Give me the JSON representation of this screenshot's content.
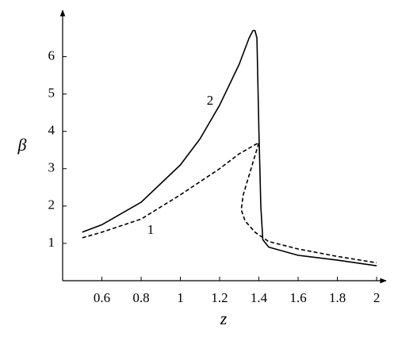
{
  "chart_data": {
    "type": "line",
    "xlabel": "z",
    "ylabel": "β",
    "xlim": [
      0.4,
      2.04
    ],
    "ylim": [
      0,
      7.2
    ],
    "xticks": [
      0.6,
      0.8,
      1,
      1.2,
      1.4,
      1.6,
      1.8,
      2
    ],
    "yticks": [
      1,
      2,
      3,
      4,
      5,
      6
    ],
    "series": [
      {
        "name": "1",
        "color": "#000000",
        "dashed": true,
        "x": [
          0.5,
          0.6,
          0.8,
          1.0,
          1.2,
          1.3,
          1.4,
          1.36,
          1.32,
          1.31,
          1.33,
          1.38,
          1.45,
          1.6,
          1.8,
          2.0
        ],
        "values": [
          1.15,
          1.3,
          1.65,
          2.3,
          3.0,
          3.4,
          3.7,
          3.0,
          2.3,
          1.9,
          1.6,
          1.3,
          1.05,
          0.85,
          0.65,
          0.48
        ]
      },
      {
        "name": "2",
        "color": "#000000",
        "dashed": false,
        "x": [
          0.5,
          0.6,
          0.8,
          1.0,
          1.1,
          1.2,
          1.3,
          1.35,
          1.37,
          1.38,
          1.39,
          1.4,
          1.41,
          1.42,
          1.45,
          1.6,
          1.8,
          2.0
        ],
        "values": [
          1.3,
          1.5,
          2.1,
          3.1,
          3.8,
          4.7,
          5.8,
          6.5,
          6.7,
          6.7,
          6.5,
          4.0,
          2.0,
          1.1,
          0.9,
          0.68,
          0.55,
          0.4
        ]
      }
    ]
  }
}
